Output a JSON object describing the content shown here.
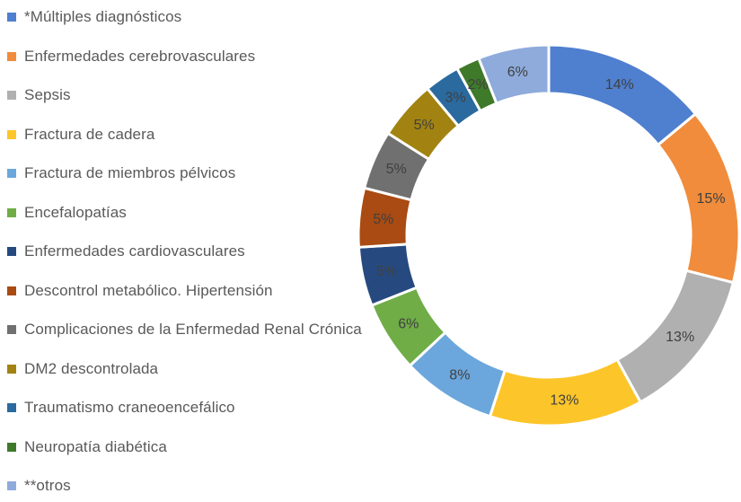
{
  "chart_data": {
    "type": "pie",
    "title": "",
    "legend_position": "left",
    "categories": [
      "*Múltiples diagnósticos",
      "Enfermedades cerebrovasculares",
      "Sepsis",
      "Fractura de cadera",
      "Fractura de miembros pélvicos",
      "Encefalopatías",
      "Enfermedades cardiovasculares",
      "Descontrol metabólico. Hipertensión",
      "Complicaciones de la Enfermedad Renal Crónica",
      "DM2 descontrolada",
      "Traumatismo craneoencefálico",
      "Neuropatía diabética",
      "**otros"
    ],
    "values": [
      14,
      15,
      13,
      13,
      8,
      6,
      5,
      5,
      5,
      5,
      3,
      2,
      6
    ],
    "labels": [
      "14%",
      "15%",
      "13%",
      "13%",
      "8%",
      "6%",
      "5%",
      "5%",
      "5%",
      "5%",
      "3%",
      "2%",
      "6%"
    ],
    "colors": [
      "#4f7fcf",
      "#f08c3c",
      "#b0b0b0",
      "#fcc52a",
      "#6ba7dc",
      "#70ad47",
      "#264a80",
      "#a94b12",
      "#707070",
      "#a28311",
      "#2a6a9e",
      "#3f7a2a",
      "#8eabdc"
    ]
  }
}
